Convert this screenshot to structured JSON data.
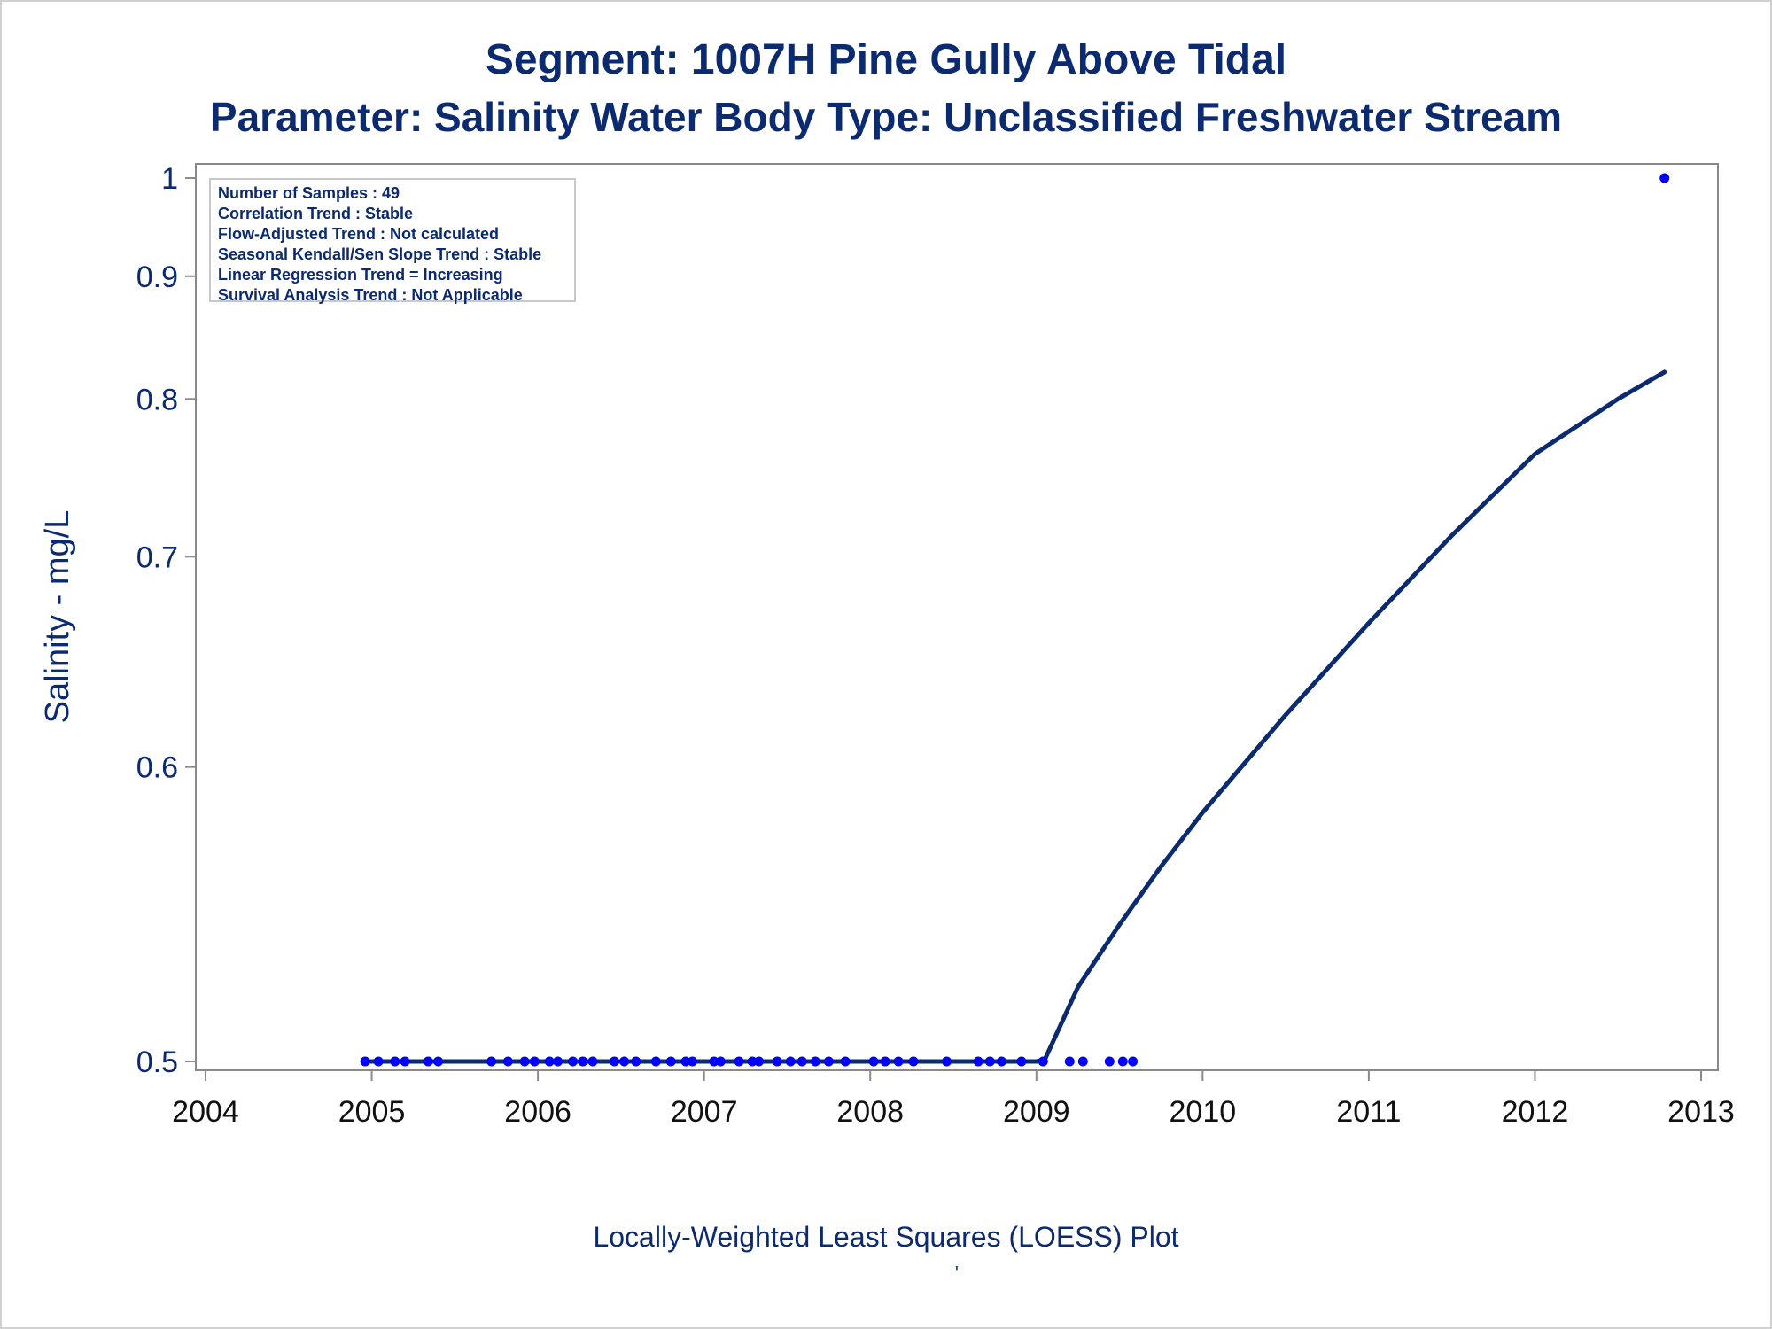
{
  "titles": {
    "line1": "Segment: 1007H  Pine Gully Above Tidal",
    "line2": "Parameter: Salinity   Water Body Type: Unclassified Freshwater Stream"
  },
  "stats_box": [
    "Number of Samples : 49",
    "Correlation Trend : Stable",
    "Flow-Adjusted Trend : Not calculated",
    "Seasonal Kendall/Sen Slope Trend : Stable",
    "Linear Regression Trend = Increasing",
    "Survival Analysis Trend : Not Applicable"
  ],
  "footnote": "Locally-Weighted Least Squares (LOESS) Plot",
  "footnote_mark": "'",
  "colors": {
    "text": "#0b2a6f",
    "points": "#0000ff",
    "line": "#0b2a6f",
    "axis": "#8a8a8a"
  },
  "chart_data": {
    "type": "scatter",
    "title": "Segment: 1007H  Pine Gully Above Tidal",
    "subtitle": "Parameter: Salinity   Water Body Type: Unclassified Freshwater Stream",
    "xlabel": "",
    "ylabel": "Salinity - mg/L",
    "xlim": [
      2004,
      2013
    ],
    "ylim": [
      0.5,
      1.0
    ],
    "y_scale": "reciprocal",
    "x_ticks": [
      2004,
      2005,
      2006,
      2007,
      2008,
      2009,
      2010,
      2011,
      2012,
      2013
    ],
    "y_ticks": [
      0.5,
      0.6,
      0.7,
      0.8,
      0.9,
      1
    ],
    "y_tick_labels": [
      "0.5",
      "0.6",
      "0.7",
      "0.8",
      "0.9",
      "1"
    ],
    "grid": false,
    "series": [
      {
        "kind": "points",
        "x": [
          2004.96,
          2005.04,
          2005.14,
          2005.2,
          2005.34,
          2005.4,
          2005.72,
          2005.82,
          2005.92,
          2005.98,
          2006.07,
          2006.12,
          2006.21,
          2006.27,
          2006.33,
          2006.46,
          2006.52,
          2006.59,
          2006.71,
          2006.8,
          2006.89,
          2006.93,
          2007.06,
          2007.1,
          2007.21,
          2007.29,
          2007.33,
          2007.44,
          2007.52,
          2007.59,
          2007.67,
          2007.75,
          2007.85,
          2008.02,
          2008.09,
          2008.17,
          2008.26,
          2008.46,
          2008.65,
          2008.72,
          2008.79,
          2008.91,
          2009.04,
          2009.2,
          2009.28,
          2009.44,
          2009.52,
          2009.58,
          2012.78
        ],
        "y": [
          0.5,
          0.5,
          0.5,
          0.5,
          0.5,
          0.5,
          0.5,
          0.5,
          0.5,
          0.5,
          0.5,
          0.5,
          0.5,
          0.5,
          0.5,
          0.5,
          0.5,
          0.5,
          0.5,
          0.5,
          0.5,
          0.5,
          0.5,
          0.5,
          0.5,
          0.5,
          0.5,
          0.5,
          0.5,
          0.5,
          0.5,
          0.5,
          0.5,
          0.5,
          0.5,
          0.5,
          0.5,
          0.5,
          0.5,
          0.5,
          0.5,
          0.5,
          0.5,
          0.5,
          0.5,
          0.5,
          0.5,
          0.5,
          1.0
        ]
      },
      {
        "kind": "loess",
        "x": [
          2004.96,
          2005.5,
          2006.0,
          2006.5,
          2007.0,
          2007.5,
          2008.0,
          2008.5,
          2009.0,
          2009.05,
          2009.25,
          2009.5,
          2009.75,
          2010.0,
          2010.5,
          2011.0,
          2011.5,
          2012.0,
          2012.5,
          2012.78
        ],
        "y": [
          0.5,
          0.5,
          0.5,
          0.5,
          0.5,
          0.5,
          0.5,
          0.5,
          0.5,
          0.5005,
          0.522,
          0.542,
          0.562,
          0.582,
          0.622,
          0.665,
          0.712,
          0.762,
          0.8,
          0.82
        ]
      }
    ]
  }
}
